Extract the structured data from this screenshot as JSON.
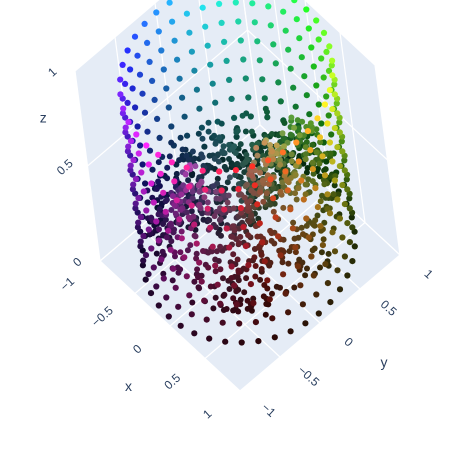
{
  "chart_data": {
    "type": "scatter3d",
    "title": "",
    "axes": {
      "x": {
        "label": "x",
        "range": [
          -1,
          1
        ],
        "ticks": [
          "−1",
          "−0.5",
          "0",
          "0.5",
          "1"
        ]
      },
      "y": {
        "label": "y",
        "range": [
          -1,
          1
        ],
        "ticks": [
          "−1",
          "−0.5",
          "0",
          "0.5",
          "1"
        ]
      },
      "z": {
        "label": "z",
        "range": [
          0,
          1
        ],
        "ticks": [
          "0",
          "0.5",
          "1"
        ]
      }
    },
    "series": [
      {
        "kind": "cylinder-wall",
        "radius": 1,
        "z_levels": [
          0.05,
          0.15,
          0.25,
          0.35,
          0.45,
          0.55,
          0.65,
          0.75,
          0.85,
          0.95
        ],
        "angle_count": 40,
        "color": "hue by angle, brightness by height"
      },
      {
        "kind": "interior-cloud",
        "radius": 0.9,
        "point_count": 900,
        "color": "hue by angle, brightness by height, saturation by radius"
      }
    ],
    "scene_background": "#e5ecf6",
    "grid": true,
    "legend": "none"
  }
}
